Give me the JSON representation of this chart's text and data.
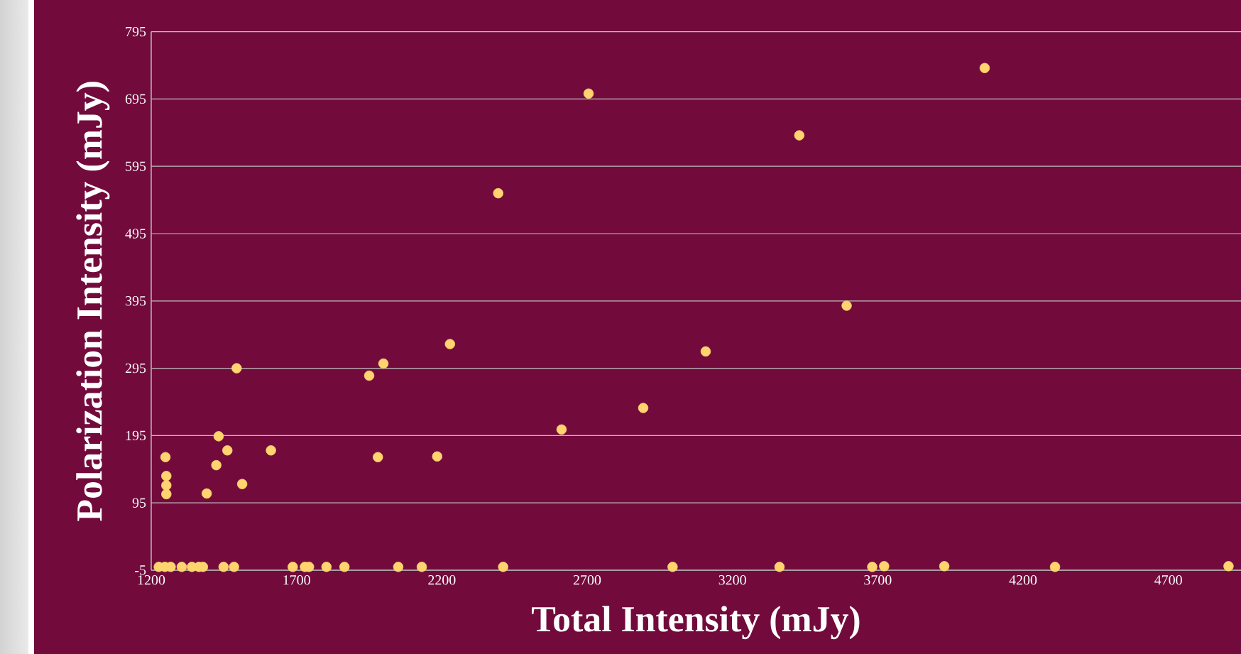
{
  "chart_data": {
    "type": "scatter",
    "xlabel": "Total Intensity (mJy)",
    "ylabel": "Polarization Intensity (mJy)",
    "x": [
      1226,
      1247,
      1267,
      1305,
      1340,
      1364,
      1378,
      1449,
      1485,
      1687,
      1729,
      1743,
      1803,
      1865,
      2050,
      2131,
      2411,
      2994,
      3362,
      3681,
      3722,
      3929,
      4310,
      4907,
      1249,
      1252,
      1252,
      1252,
      1391,
      1424,
      1432,
      1462,
      1494,
      1513,
      1612,
      1950,
      1980,
      1999,
      2184,
      2228,
      2394,
      2612,
      2705,
      2893,
      3108,
      3430,
      3593,
      4068
    ],
    "values": [
      0,
      0,
      0,
      0,
      0,
      0,
      0,
      0,
      0,
      0,
      0,
      0,
      0,
      0,
      0,
      0,
      0,
      0,
      0,
      0,
      1,
      1,
      0,
      1,
      163,
      135,
      121,
      108,
      109,
      151,
      194,
      173,
      295,
      123,
      173,
      284,
      163,
      302,
      164,
      331,
      555,
      204,
      703,
      236,
      320,
      641,
      388,
      741
    ],
    "color": "#ffd46e",
    "marker": "circle",
    "xlim": [
      1200,
      4950
    ],
    "ylim": [
      -5,
      795
    ],
    "xticks": [
      1200,
      1700,
      2200,
      2700,
      3200,
      3700,
      4200,
      4700
    ],
    "yticks": [
      -5,
      95,
      195,
      295,
      395,
      495,
      595,
      695,
      795
    ],
    "grid": "y"
  }
}
